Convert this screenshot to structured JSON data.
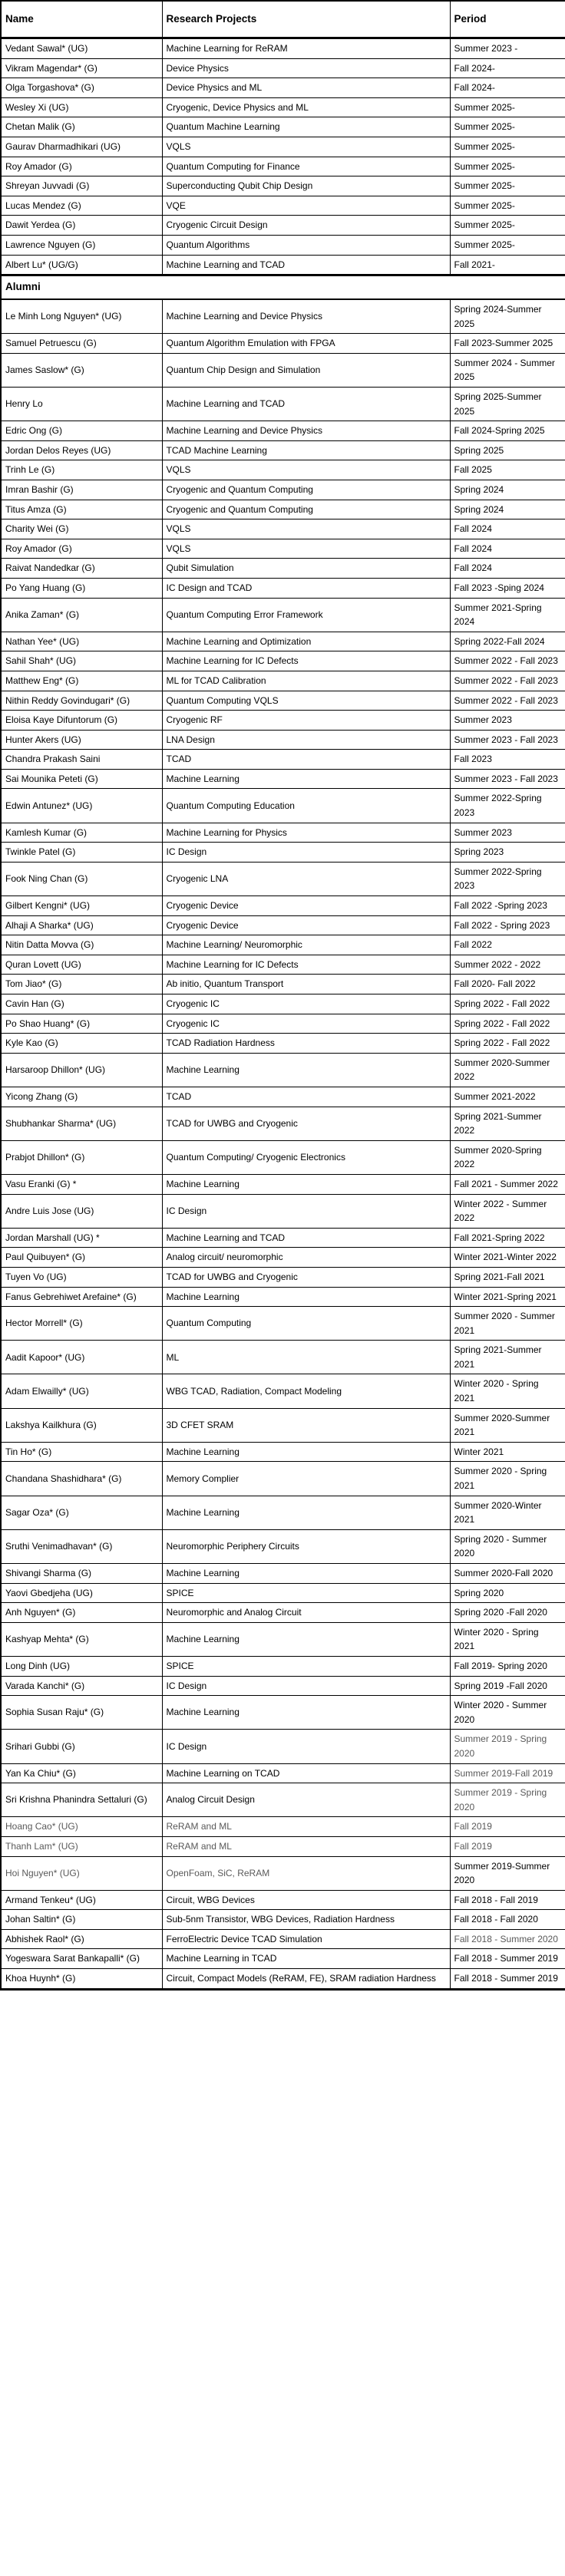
{
  "table": {
    "headers": [
      "Name",
      "Research Projects",
      "Period"
    ],
    "section_label": "Alumni",
    "current": [
      {
        "name": "Vedant Sawal* (UG)",
        "project": "Machine Learning for ReRAM",
        "period": "Summer 2023 -"
      },
      {
        "name": "Vikram Magendar* (G)",
        "project": "Device Physics",
        "period": "Fall 2024-"
      },
      {
        "name": "Olga Torgashova* (G)",
        "project": "Device Physics and ML",
        "period": "Fall 2024-"
      },
      {
        "name": "Wesley Xi (UG)",
        "project": "Cryogenic, Device Physics and ML",
        "period": "Summer 2025-"
      },
      {
        "name": "Chetan Malik (G)",
        "project": "Quantum Machine Learning",
        "period": "Summer 2025-"
      },
      {
        "name": "Gaurav Dharmadhikari (UG)",
        "project": "VQLS",
        "period": "Summer 2025-"
      },
      {
        "name": "Roy Amador (G)",
        "project": "Quantum Computing for Finance",
        "period": "Summer 2025-"
      },
      {
        "name": "Shreyan Juvvadi (G)",
        "project": "Superconducting Qubit Chip Design",
        "period": "Summer 2025-"
      },
      {
        "name": "Lucas Mendez (G)",
        "project": "VQE",
        "period": "Summer 2025-"
      },
      {
        "name": "Dawit Yerdea (G)",
        "project": "Cryogenic Circuit Design",
        "period": "Summer 2025-"
      },
      {
        "name": "Lawrence Nguyen (G)",
        "project": "Quantum Algorithms",
        "period": "Summer 2025-"
      },
      {
        "name": "Albert Lu* (UG/G)",
        "project": "Machine Learning and TCAD",
        "period": "Fall 2021-"
      }
    ],
    "alumni": [
      {
        "name": "Le Minh Long Nguyen* (UG)",
        "project": "Machine Learning and Device Physics",
        "period": "Spring 2024-Summer 2025"
      },
      {
        "name": "Samuel Petruescu (G)",
        "project": "Quantum Algorithm Emulation with FPGA",
        "period": "Fall 2023-Summer 2025"
      },
      {
        "name": "James Saslow* (G)",
        "project": "Quantum Chip Design and Simulation",
        "period": "Summer 2024 - Summer 2025"
      },
      {
        "name": "Henry Lo",
        "project": "Machine Learning and TCAD",
        "period": "Spring 2025-Summer 2025"
      },
      {
        "name": "Edric Ong (G)",
        "project": "Machine Learning and Device Physics",
        "period": "Fall 2024-Spring 2025"
      },
      {
        "name": "Jordan Delos Reyes (UG)",
        "project": "TCAD Machine Learning",
        "period": "Spring 2025"
      },
      {
        "name": "Trinh Le (G)",
        "project": "VQLS",
        "period": "Fall 2025"
      },
      {
        "name": "Imran Bashir (G)",
        "project": "Cryogenic and Quantum Computing",
        "period": "Spring 2024"
      },
      {
        "name": "Titus Amza (G)",
        "project": "Cryogenic and Quantum Computing",
        "period": "Spring 2024"
      },
      {
        "name": "Charity Wei (G)",
        "project": "VQLS",
        "period": "Fall 2024"
      },
      {
        "name": "Roy Amador  (G)",
        "project": "VQLS",
        "period": "Fall 2024"
      },
      {
        "name": "Raivat Nandedkar (G)",
        "project": "Qubit Simulation",
        "period": "Fall 2024"
      },
      {
        "name": "Po Yang Huang (G)",
        "project": "IC Design and TCAD",
        "period": "Fall 2023 -Sping 2024"
      },
      {
        "name": "Anika Zaman* (G)",
        "project": "Quantum Computing Error Framework",
        "period": "Summer 2021-Spring 2024"
      },
      {
        "name": "Nathan Yee* (UG)",
        "project": "Machine Learning and Optimization",
        "period": "Spring 2022-Fall 2024"
      },
      {
        "name": "Sahil Shah* (UG)",
        "project": "Machine Learning for IC Defects",
        "period": "Summer 2022 - Fall 2023"
      },
      {
        "name": "Matthew Eng* (G)",
        "project": "ML for TCAD Calibration",
        "period": "Summer 2022 - Fall 2023"
      },
      {
        "name": "Nithin Reddy Govindugari* (G)",
        "project": "Quantum Computing VQLS",
        "period": "Summer 2022 - Fall 2023"
      },
      {
        "name": "Eloisa Kaye Difuntorum (G)",
        "project": "Cryogenic RF",
        "period": "Summer 2023"
      },
      {
        "name": "Hunter Akers (UG)",
        "project": "LNA Design",
        "period": "Summer 2023 - Fall 2023"
      },
      {
        "name": "Chandra Prakash Saini",
        "project": "TCAD",
        "period": "Fall 2023"
      },
      {
        "name": "Sai Mounika Peteti (G)",
        "project": "Machine Learning",
        "period": "Summer 2023 - Fall 2023"
      },
      {
        "name": "Edwin Antunez* (UG)",
        "project": "Quantum Computing Education",
        "period": "Summer 2022-Spring 2023"
      },
      {
        "name": "Kamlesh Kumar (G)",
        "project": "Machine Learning for Physics",
        "period": "Summer 2023"
      },
      {
        "name": "Twinkle Patel (G)",
        "project": "IC Design",
        "period": "Spring 2023"
      },
      {
        "name": "Fook Ning Chan (G)",
        "project": "Cryogenic LNA",
        "period": "Summer 2022-Spring 2023"
      },
      {
        "name": "Gilbert Kengni* (UG)",
        "project": "Cryogenic Device",
        "period": "Fall 2022 -Spring 2023"
      },
      {
        "name": "Alhaji A Sharka* (UG)",
        "project": "Cryogenic Device",
        "period": "Fall 2022 - Spring 2023"
      },
      {
        "name": "Nitin Datta Movva (G)",
        "project": "Machine Learning/ Neuromorphic",
        "period": "Fall 2022"
      },
      {
        "name": "Quran Lovett (UG)",
        "project": "Machine Learning for IC Defects",
        "period": "Summer 2022 - 2022"
      },
      {
        "name": "Tom Jiao* (G)",
        "project": "Ab initio, Quantum Transport",
        "period": "Fall 2020- Fall 2022"
      },
      {
        "name": "Cavin Han (G)",
        "project": "Cryogenic IC",
        "period": "Spring 2022 - Fall 2022"
      },
      {
        "name": "Po Shao Huang* (G)",
        "project": "Cryogenic IC",
        "period": "Spring 2022 - Fall 2022"
      },
      {
        "name": "Kyle Kao (G)",
        "project": "TCAD Radiation Hardness",
        "period": "Spring 2022 - Fall 2022"
      },
      {
        "name": "Harsaroop Dhillon* (UG)",
        "project": "Machine Learning",
        "period": "Summer 2020-Summer 2022"
      },
      {
        "name": "Yicong Zhang (G)",
        "project": "TCAD",
        "period": "Summer 2021-2022"
      },
      {
        "name": "Shubhankar Sharma* (UG)",
        "project": "TCAD for UWBG and Cryogenic",
        "period": "Spring 2021-Summer 2022"
      },
      {
        "name": "Prabjot Dhillon* (G)",
        "project": "Quantum Computing/ Cryogenic Electronics",
        "period": "Summer 2020-Spring 2022"
      },
      {
        "name": "Vasu Eranki (G) *",
        "project": "Machine Learning",
        "period": "Fall 2021 - Summer 2022"
      },
      {
        "name": "Andre Luis Jose (UG)",
        "project": "IC Design",
        "period": "Winter 2022 - Summer 2022"
      },
      {
        "name": "Jordan Marshall (UG) *",
        "project": "Machine Learning and TCAD",
        "period": "Fall 2021-Spring 2022"
      },
      {
        "name": "Paul Quibuyen* (G)",
        "project": "Analog circuit/ neuromorphic",
        "period": "Winter 2021-Winter 2022"
      },
      {
        "name": "Tuyen Vo (UG)",
        "project": "TCAD for UWBG and Cryogenic",
        "period": "Spring 2021-Fall 2021"
      },
      {
        "name": "Fanus Gebrehiwet Arefaine* (G)",
        "project": "Machine Learning",
        "period": "Winter 2021-Spring 2021"
      },
      {
        "name": "Hector Morrell* (G)",
        "project": "Quantum Computing",
        "period": "Summer 2020 - Summer 2021"
      },
      {
        "name": "Aadit Kapoor* (UG)",
        "project": "ML",
        "period": "Spring 2021-Summer 2021"
      },
      {
        "name": "Adam Elwailly* (UG)",
        "project": "WBG TCAD, Radiation, Compact Modeling",
        "period": "Winter 2020 - Spring 2021"
      },
      {
        "name": "Lakshya Kailkhura (G)",
        "project": "3D CFET SRAM",
        "period": "Summer 2020-Summer 2021"
      },
      {
        "name": "Tin Ho* (G)",
        "project": "Machine Learning",
        "period": "Winter 2021"
      },
      {
        "name": "Chandana Shashidhara* (G)",
        "project": "Memory Complier",
        "period": "Summer 2020 - Spring 2021"
      },
      {
        "name": "Sagar Oza* (G)",
        "project": "Machine Learning",
        "period": "Summer 2020-Winter 2021"
      },
      {
        "name": "Sruthi Venimadhavan* (G)",
        "project": "Neuromorphic Periphery Circuits",
        "period": "Spring 2020 - Summer 2020"
      },
      {
        "name": "Shivangi Sharma (G)",
        "project": "Machine Learning",
        "period": "Summer 2020-Fall 2020"
      },
      {
        "name": "Yaovi Gbedjeha (UG)",
        "project": "SPICE",
        "period": "Spring 2020"
      },
      {
        "name": "Anh Nguyen* (G)",
        "project": "Neuromorphic and Analog Circuit",
        "period": "Spring 2020 -Fall 2020"
      },
      {
        "name": "Kashyap Mehta* (G)",
        "project": "Machine Learning",
        "period": "Winter 2020 - Spring 2021"
      },
      {
        "name": "Long Dinh (UG)",
        "project": "SPICE",
        "period": "Fall 2019- Spring 2020"
      },
      {
        "name": "Varada Kanchi* (G)",
        "project": "IC Design",
        "period": "Spring 2019 -Fall 2020"
      },
      {
        "name": "Sophia Susan Raju* (G)",
        "project": "Machine Learning",
        "period": "Winter 2020 - Summer 2020"
      },
      {
        "name": "Srihari Gubbi (G)",
        "project": "IC Design",
        "period": "Summer 2019 - Spring 2020",
        "muted": "period"
      },
      {
        "name": "Yan Ka Chiu* (G)",
        "project": "Machine Learning on TCAD",
        "period": "Summer 2019-Fall 2019",
        "muted": "period"
      },
      {
        "name": "Sri Krishna Phanindra Settaluri (G)",
        "project": "Analog Circuit Design",
        "period": "Summer 2019 - Spring 2020",
        "muted": "period"
      },
      {
        "name": "Hoang Cao* (UG)",
        "project": "ReRAM and ML",
        "period": "Fall 2019",
        "muted": "all"
      },
      {
        "name": "Thanh Lam* (UG)",
        "project": "ReRAM and ML",
        "period": "Fall 2019",
        "muted": "all"
      },
      {
        "name": "Hoi Nguyen* (UG)",
        "project": "OpenFoam, SiC, ReRAM",
        "period": "Summer 2019-Summer 2020",
        "muted": "np"
      },
      {
        "name": "Armand Tenkeu* (UG)",
        "project": "Circuit, WBG Devices",
        "period": "Fall 2018 - Fall 2019"
      },
      {
        "name": "Johan Saltin* (G)",
        "project": "Sub-5nm Transistor, WBG Devices, Radiation Hardness",
        "period": "Fall 2018 - Fall 2020"
      },
      {
        "name": "Abhishek Raol* (G)",
        "project": "FerroElectric Device TCAD Simulation",
        "period": "Fall 2018 - Summer 2020",
        "muted": "period"
      },
      {
        "name": "Yogeswara Sarat Bankapalli* (G)",
        "project": "Machine Learning in TCAD",
        "period": "Fall 2018 - Summer 2019"
      },
      {
        "name": "Khoa Huynh* (G)",
        "project": "Circuit, Compact Models (ReRAM, FE), SRAM radiation Hardness",
        "period": "Fall 2018 - Summer 2019"
      }
    ]
  }
}
